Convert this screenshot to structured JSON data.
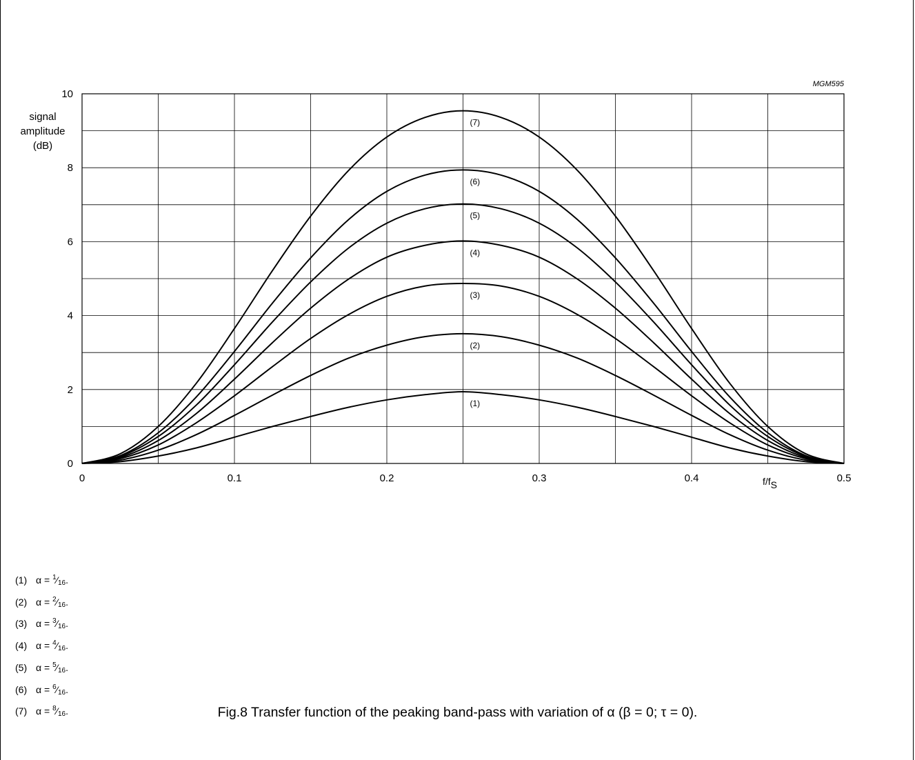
{
  "chart_data": {
    "type": "line",
    "id_label": "MGM595",
    "ylabel": [
      "signal",
      "amplitude",
      "(dB)"
    ],
    "xlabel": "f/f",
    "xlabel_sub": "S",
    "xlim": [
      0,
      0.5
    ],
    "ylim": [
      0,
      10
    ],
    "x_ticks": [
      "0",
      "0.1",
      "0.2",
      "0.3",
      "0.4",
      "0.5"
    ],
    "y_ticks": [
      "0",
      "2",
      "4",
      "6",
      "8",
      "10"
    ],
    "grid": true,
    "x": [
      0,
      0.025,
      0.05,
      0.075,
      0.1,
      0.125,
      0.15,
      0.175,
      0.2,
      0.225,
      0.25,
      0.275,
      0.3,
      0.325,
      0.35,
      0.375,
      0.4,
      0.425,
      0.45,
      0.475,
      0.5
    ],
    "series": [
      {
        "name": "(1)",
        "values": [
          0,
          0.05,
          0.2,
          0.42,
          0.71,
          1.0,
          1.27,
          1.52,
          1.72,
          1.86,
          1.94,
          1.86,
          1.72,
          1.52,
          1.27,
          1.0,
          0.71,
          0.42,
          0.2,
          0.05,
          0
        ]
      },
      {
        "name": "(2)",
        "values": [
          0,
          0.09,
          0.36,
          0.78,
          1.3,
          1.85,
          2.38,
          2.85,
          3.2,
          3.43,
          3.51,
          3.43,
          3.2,
          2.85,
          2.38,
          1.85,
          1.3,
          0.78,
          0.36,
          0.09,
          0
        ]
      },
      {
        "name": "(3)",
        "values": [
          0,
          0.13,
          0.5,
          1.1,
          1.83,
          2.62,
          3.38,
          4.03,
          4.52,
          4.8,
          4.87,
          4.8,
          4.52,
          4.03,
          3.38,
          2.62,
          1.83,
          1.1,
          0.5,
          0.13,
          0
        ]
      },
      {
        "name": "(4)",
        "values": [
          0,
          0.16,
          0.62,
          1.35,
          2.28,
          3.27,
          4.2,
          4.99,
          5.58,
          5.9,
          6.02,
          5.9,
          5.58,
          4.99,
          4.2,
          3.27,
          2.28,
          1.35,
          0.62,
          0.16,
          0
        ]
      },
      {
        "name": "(5)",
        "values": [
          0,
          0.19,
          0.73,
          1.58,
          2.67,
          3.83,
          4.91,
          5.83,
          6.5,
          6.89,
          7.02,
          6.89,
          6.5,
          5.83,
          4.91,
          3.83,
          2.67,
          1.58,
          0.73,
          0.19,
          0
        ]
      },
      {
        "name": "(6)",
        "values": [
          0,
          0.21,
          0.83,
          1.8,
          3.03,
          4.34,
          5.56,
          6.6,
          7.36,
          7.8,
          7.94,
          7.8,
          7.36,
          6.6,
          5.56,
          4.34,
          3.03,
          1.8,
          0.83,
          0.21,
          0
        ]
      },
      {
        "name": "(7)",
        "values": [
          0,
          0.26,
          1.0,
          2.17,
          3.65,
          5.22,
          6.69,
          7.93,
          8.83,
          9.36,
          9.54,
          9.36,
          8.83,
          7.93,
          6.69,
          5.22,
          3.65,
          2.17,
          1.0,
          0.26,
          0
        ]
      }
    ]
  },
  "legend": [
    {
      "num": "(1)",
      "prefix": "α = ",
      "numerator": "1",
      "denominator": "16",
      "suffix": "."
    },
    {
      "num": "(2)",
      "prefix": "α = ",
      "numerator": "2",
      "denominator": "16",
      "suffix": "."
    },
    {
      "num": "(3)",
      "prefix": "α = ",
      "numerator": "3",
      "denominator": "16",
      "suffix": "."
    },
    {
      "num": "(4)",
      "prefix": "α = ",
      "numerator": "4",
      "denominator": "16",
      "suffix": "."
    },
    {
      "num": "(5)",
      "prefix": "α = ",
      "numerator": "5",
      "denominator": "16",
      "suffix": "."
    },
    {
      "num": "(6)",
      "prefix": "α = ",
      "numerator": "6",
      "denominator": "16",
      "suffix": "."
    },
    {
      "num": "(7)",
      "prefix": "α = ",
      "numerator": "8",
      "denominator": "16",
      "suffix": "."
    }
  ],
  "caption": "Fig.8  Transfer function of the peaking band-pass with variation of α (β = 0; τ = 0)."
}
